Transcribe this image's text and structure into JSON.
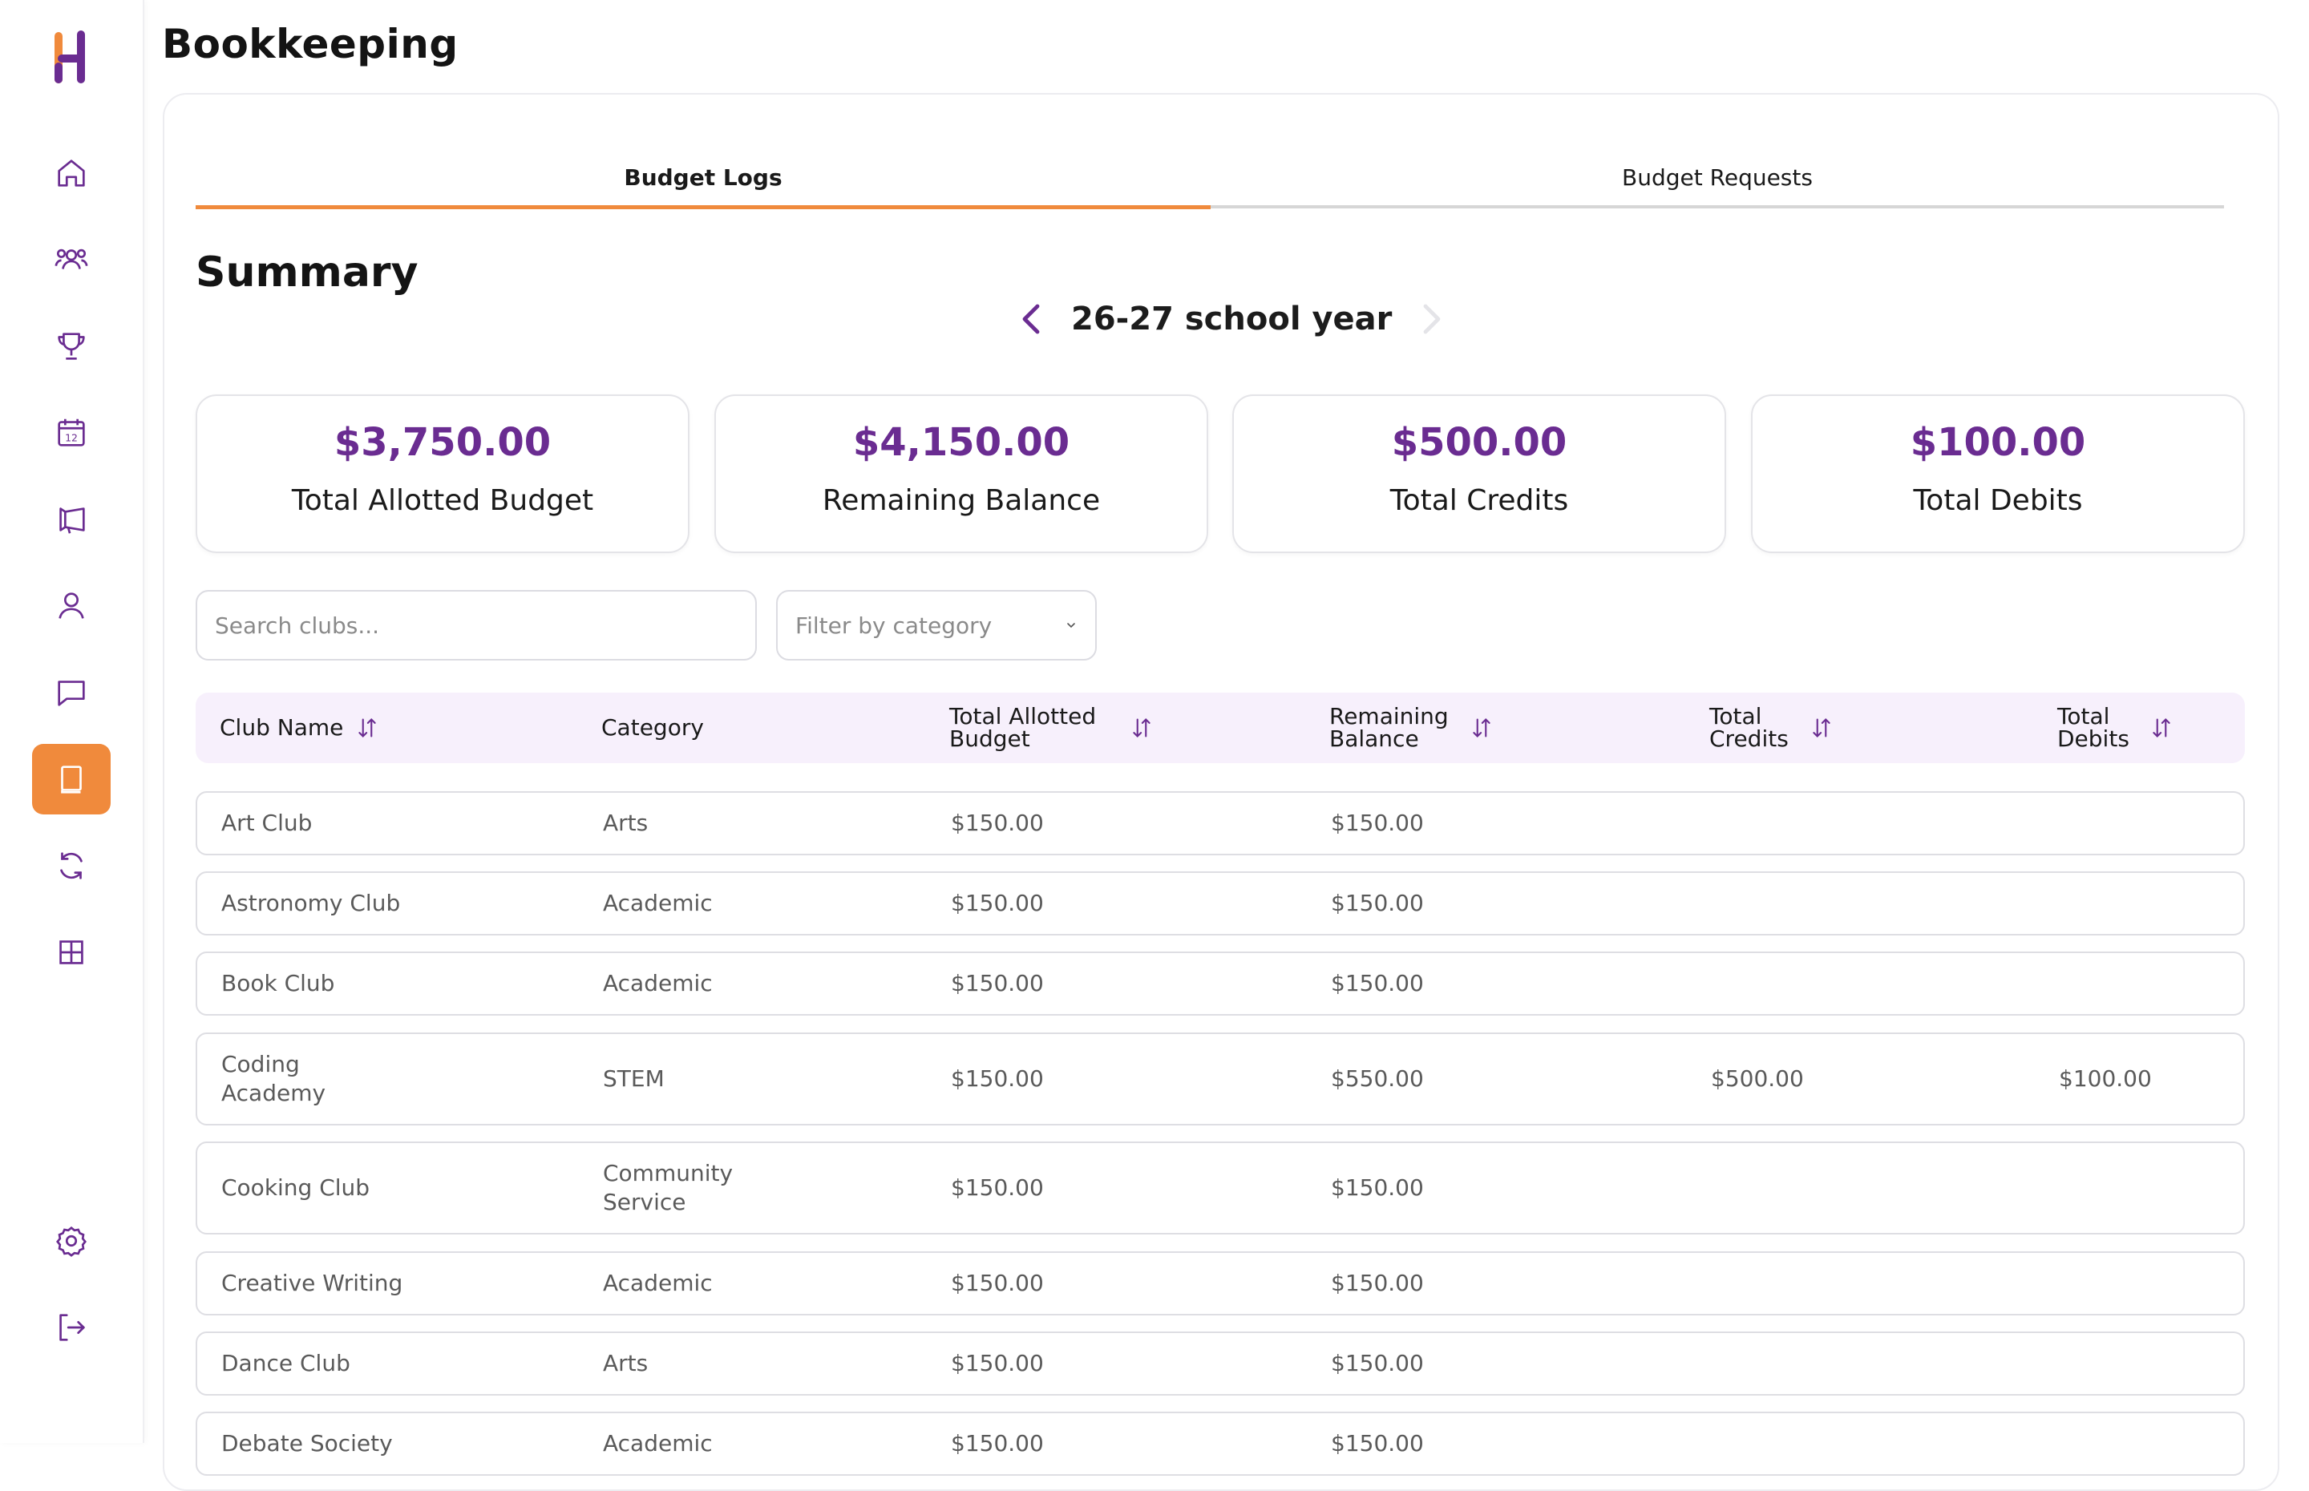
{
  "page": {
    "title": "Bookkeeping"
  },
  "colors": {
    "accent": "#f08a3c",
    "brand_purple": "#6a2c91",
    "header_bg": "#f7f0fc"
  },
  "sidebar": {
    "items": [
      {
        "icon": "home-icon"
      },
      {
        "icon": "users-icon"
      },
      {
        "icon": "trophy-icon"
      },
      {
        "icon": "calendar-icon",
        "badge": "12"
      },
      {
        "icon": "megaphone-icon"
      },
      {
        "icon": "user-icon"
      },
      {
        "icon": "chat-icon"
      },
      {
        "icon": "book-icon",
        "active": true
      },
      {
        "icon": "refresh-icon"
      },
      {
        "icon": "grid-icon"
      },
      {
        "icon": "settings-icon"
      },
      {
        "icon": "logout-icon"
      }
    ]
  },
  "tabs": [
    {
      "label": "Budget Logs",
      "active": true
    },
    {
      "label": "Budget Requests",
      "active": false
    }
  ],
  "summary": {
    "title": "Summary",
    "year_label": "26-27 school year",
    "stats": [
      {
        "value": "$3,750.00",
        "label": "Total Allotted Budget"
      },
      {
        "value": "$4,150.00",
        "label": "Remaining Balance"
      },
      {
        "value": "$500.00",
        "label": "Total Credits"
      },
      {
        "value": "$100.00",
        "label": "Total Debits"
      }
    ]
  },
  "filters": {
    "search_placeholder": "Search clubs...",
    "category_placeholder": "Filter by category"
  },
  "table": {
    "headers": [
      "Club Name",
      "Category",
      "Total Allotted Budget",
      "Remaining Balance",
      "Total Credits",
      "Total Debits"
    ],
    "rows": [
      [
        "Art Club",
        "Arts",
        "$150.00",
        "$150.00",
        "",
        ""
      ],
      [
        "Astronomy Club",
        "Academic",
        "$150.00",
        "$150.00",
        "",
        ""
      ],
      [
        "Book Club",
        "Academic",
        "$150.00",
        "$150.00",
        "",
        ""
      ],
      [
        "Coding Academy",
        "STEM",
        "$150.00",
        "$550.00",
        "$500.00",
        "$100.00"
      ],
      [
        "Cooking Club",
        "Community Service",
        "$150.00",
        "$150.00",
        "",
        ""
      ],
      [
        "Creative Writing",
        "Academic",
        "$150.00",
        "$150.00",
        "",
        ""
      ],
      [
        "Dance Club",
        "Arts",
        "$150.00",
        "$150.00",
        "",
        ""
      ],
      [
        "Debate Society",
        "Academic",
        "$150.00",
        "$150.00",
        "",
        ""
      ]
    ]
  }
}
